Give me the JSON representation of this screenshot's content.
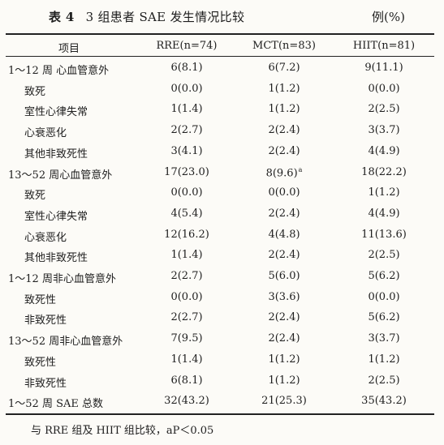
{
  "title": {
    "label": "表 4",
    "text": "3 组患者 SAE 发生情况比较"
  },
  "unit": "例(%)",
  "headers": [
    "项目",
    "RRE(n=74)",
    "MCT(n=83)",
    "HIIT(n=81)"
  ],
  "rows": [
    {
      "item": "1～12 周 心血管意外",
      "indent": false,
      "rre": "6(8.1)",
      "mct": "6(7.2)",
      "mct_sup": "",
      "hiit": "9(11.1)"
    },
    {
      "item": "致死",
      "indent": true,
      "rre": "0(0.0)",
      "mct": "1(1.2)",
      "mct_sup": "",
      "hiit": "0(0.0)"
    },
    {
      "item": "室性心律失常",
      "indent": true,
      "rre": "1(1.4)",
      "mct": "1(1.2)",
      "mct_sup": "",
      "hiit": "2(2.5)"
    },
    {
      "item": "心衰恶化",
      "indent": true,
      "rre": "2(2.7)",
      "mct": "2(2.4)",
      "mct_sup": "",
      "hiit": "3(3.7)"
    },
    {
      "item": "其他非致死性",
      "indent": true,
      "rre": "3(4.1)",
      "mct": "2(2.4)",
      "mct_sup": "",
      "hiit": "4(4.9)"
    },
    {
      "item": "13～52 周心血管意外",
      "indent": false,
      "rre": "17(23.0)",
      "mct": "8(9.6)",
      "mct_sup": "a",
      "hiit": "18(22.2)"
    },
    {
      "item": "致死",
      "indent": true,
      "rre": "0(0.0)",
      "mct": "0(0.0)",
      "mct_sup": "",
      "hiit": "1(1.2)"
    },
    {
      "item": "室性心律失常",
      "indent": true,
      "rre": "4(5.4)",
      "mct": "2(2.4)",
      "mct_sup": "",
      "hiit": "4(4.9)"
    },
    {
      "item": "心衰恶化",
      "indent": true,
      "rre": "12(16.2)",
      "mct": "4(4.8)",
      "mct_sup": "",
      "hiit": "11(13.6)"
    },
    {
      "item": "其他非致死性",
      "indent": true,
      "rre": "1(1.4)",
      "mct": "2(2.4)",
      "mct_sup": "",
      "hiit": "2(2.5)"
    },
    {
      "item": "1～12 周非心血管意外",
      "indent": false,
      "rre": "2(2.7)",
      "mct": "5(6.0)",
      "mct_sup": "",
      "hiit": "5(6.2)"
    },
    {
      "item": "致死性",
      "indent": true,
      "rre": "0(0.0)",
      "mct": "3(3.6)",
      "mct_sup": "",
      "hiit": "0(0.0)"
    },
    {
      "item": "非致死性",
      "indent": true,
      "rre": "2(2.7)",
      "mct": "2(2.4)",
      "mct_sup": "",
      "hiit": "5(6.2)"
    },
    {
      "item": "13～52 周非心血管意外",
      "indent": false,
      "rre": "7(9.5)",
      "mct": "2(2.4)",
      "mct_sup": "",
      "hiit": "3(3.7)"
    },
    {
      "item": "致死性",
      "indent": true,
      "rre": "1(1.4)",
      "mct": "1(1.2)",
      "mct_sup": "",
      "hiit": "1(1.2)"
    },
    {
      "item": "非致死性",
      "indent": true,
      "rre": "6(8.1)",
      "mct": "1(1.2)",
      "mct_sup": "",
      "hiit": "2(2.5)"
    },
    {
      "item": "1～52 周 SAE 总数",
      "indent": false,
      "rre": "32(43.2)",
      "mct": "21(25.3)",
      "mct_sup": "",
      "hiit": "35(43.2)"
    }
  ],
  "footnote": "与 RRE 组及 HIIT 组比较，aP＜0.05"
}
